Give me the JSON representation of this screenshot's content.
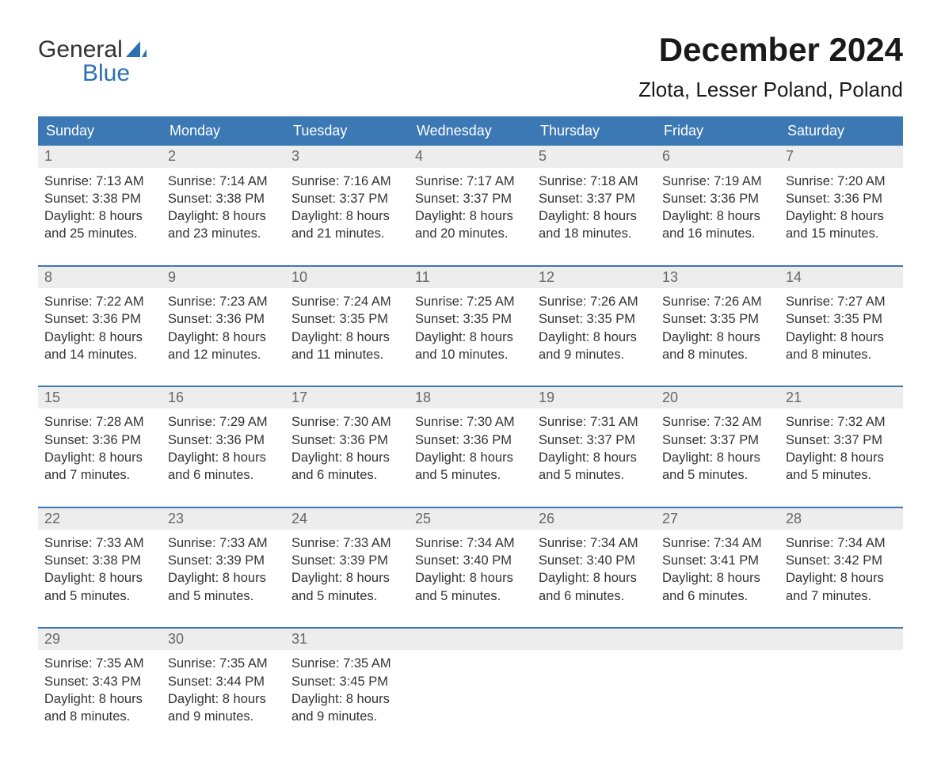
{
  "brand": {
    "line1": "General",
    "line2": "Blue",
    "sail_color": "#2d6fb4"
  },
  "title": "December 2024",
  "location": "Zlota, Lesser Poland, Poland",
  "colors": {
    "header_bg": "#3c78b4",
    "header_text": "#ffffff",
    "daynum_bg": "#ededed",
    "daynum_text": "#666666",
    "body_text": "#333333",
    "week_border": "#3c78b4"
  },
  "days_of_week": [
    "Sunday",
    "Monday",
    "Tuesday",
    "Wednesday",
    "Thursday",
    "Friday",
    "Saturday"
  ],
  "weeks": [
    [
      {
        "n": "1",
        "sunrise": "7:13 AM",
        "sunset": "3:38 PM",
        "daylight": "8 hours and 25 minutes."
      },
      {
        "n": "2",
        "sunrise": "7:14 AM",
        "sunset": "3:38 PM",
        "daylight": "8 hours and 23 minutes."
      },
      {
        "n": "3",
        "sunrise": "7:16 AM",
        "sunset": "3:37 PM",
        "daylight": "8 hours and 21 minutes."
      },
      {
        "n": "4",
        "sunrise": "7:17 AM",
        "sunset": "3:37 PM",
        "daylight": "8 hours and 20 minutes."
      },
      {
        "n": "5",
        "sunrise": "7:18 AM",
        "sunset": "3:37 PM",
        "daylight": "8 hours and 18 minutes."
      },
      {
        "n": "6",
        "sunrise": "7:19 AM",
        "sunset": "3:36 PM",
        "daylight": "8 hours and 16 minutes."
      },
      {
        "n": "7",
        "sunrise": "7:20 AM",
        "sunset": "3:36 PM",
        "daylight": "8 hours and 15 minutes."
      }
    ],
    [
      {
        "n": "8",
        "sunrise": "7:22 AM",
        "sunset": "3:36 PM",
        "daylight": "8 hours and 14 minutes."
      },
      {
        "n": "9",
        "sunrise": "7:23 AM",
        "sunset": "3:36 PM",
        "daylight": "8 hours and 12 minutes."
      },
      {
        "n": "10",
        "sunrise": "7:24 AM",
        "sunset": "3:35 PM",
        "daylight": "8 hours and 11 minutes."
      },
      {
        "n": "11",
        "sunrise": "7:25 AM",
        "sunset": "3:35 PM",
        "daylight": "8 hours and 10 minutes."
      },
      {
        "n": "12",
        "sunrise": "7:26 AM",
        "sunset": "3:35 PM",
        "daylight": "8 hours and 9 minutes."
      },
      {
        "n": "13",
        "sunrise": "7:26 AM",
        "sunset": "3:35 PM",
        "daylight": "8 hours and 8 minutes."
      },
      {
        "n": "14",
        "sunrise": "7:27 AM",
        "sunset": "3:35 PM",
        "daylight": "8 hours and 8 minutes."
      }
    ],
    [
      {
        "n": "15",
        "sunrise": "7:28 AM",
        "sunset": "3:36 PM",
        "daylight": "8 hours and 7 minutes."
      },
      {
        "n": "16",
        "sunrise": "7:29 AM",
        "sunset": "3:36 PM",
        "daylight": "8 hours and 6 minutes."
      },
      {
        "n": "17",
        "sunrise": "7:30 AM",
        "sunset": "3:36 PM",
        "daylight": "8 hours and 6 minutes."
      },
      {
        "n": "18",
        "sunrise": "7:30 AM",
        "sunset": "3:36 PM",
        "daylight": "8 hours and 5 minutes."
      },
      {
        "n": "19",
        "sunrise": "7:31 AM",
        "sunset": "3:37 PM",
        "daylight": "8 hours and 5 minutes."
      },
      {
        "n": "20",
        "sunrise": "7:32 AM",
        "sunset": "3:37 PM",
        "daylight": "8 hours and 5 minutes."
      },
      {
        "n": "21",
        "sunrise": "7:32 AM",
        "sunset": "3:37 PM",
        "daylight": "8 hours and 5 minutes."
      }
    ],
    [
      {
        "n": "22",
        "sunrise": "7:33 AM",
        "sunset": "3:38 PM",
        "daylight": "8 hours and 5 minutes."
      },
      {
        "n": "23",
        "sunrise": "7:33 AM",
        "sunset": "3:39 PM",
        "daylight": "8 hours and 5 minutes."
      },
      {
        "n": "24",
        "sunrise": "7:33 AM",
        "sunset": "3:39 PM",
        "daylight": "8 hours and 5 minutes."
      },
      {
        "n": "25",
        "sunrise": "7:34 AM",
        "sunset": "3:40 PM",
        "daylight": "8 hours and 5 minutes."
      },
      {
        "n": "26",
        "sunrise": "7:34 AM",
        "sunset": "3:40 PM",
        "daylight": "8 hours and 6 minutes."
      },
      {
        "n": "27",
        "sunrise": "7:34 AM",
        "sunset": "3:41 PM",
        "daylight": "8 hours and 6 minutes."
      },
      {
        "n": "28",
        "sunrise": "7:34 AM",
        "sunset": "3:42 PM",
        "daylight": "8 hours and 7 minutes."
      }
    ],
    [
      {
        "n": "29",
        "sunrise": "7:35 AM",
        "sunset": "3:43 PM",
        "daylight": "8 hours and 8 minutes."
      },
      {
        "n": "30",
        "sunrise": "7:35 AM",
        "sunset": "3:44 PM",
        "daylight": "8 hours and 9 minutes."
      },
      {
        "n": "31",
        "sunrise": "7:35 AM",
        "sunset": "3:45 PM",
        "daylight": "8 hours and 9 minutes."
      },
      null,
      null,
      null,
      null
    ]
  ],
  "labels": {
    "sunrise": "Sunrise:",
    "sunset": "Sunset:",
    "daylight": "Daylight:"
  }
}
